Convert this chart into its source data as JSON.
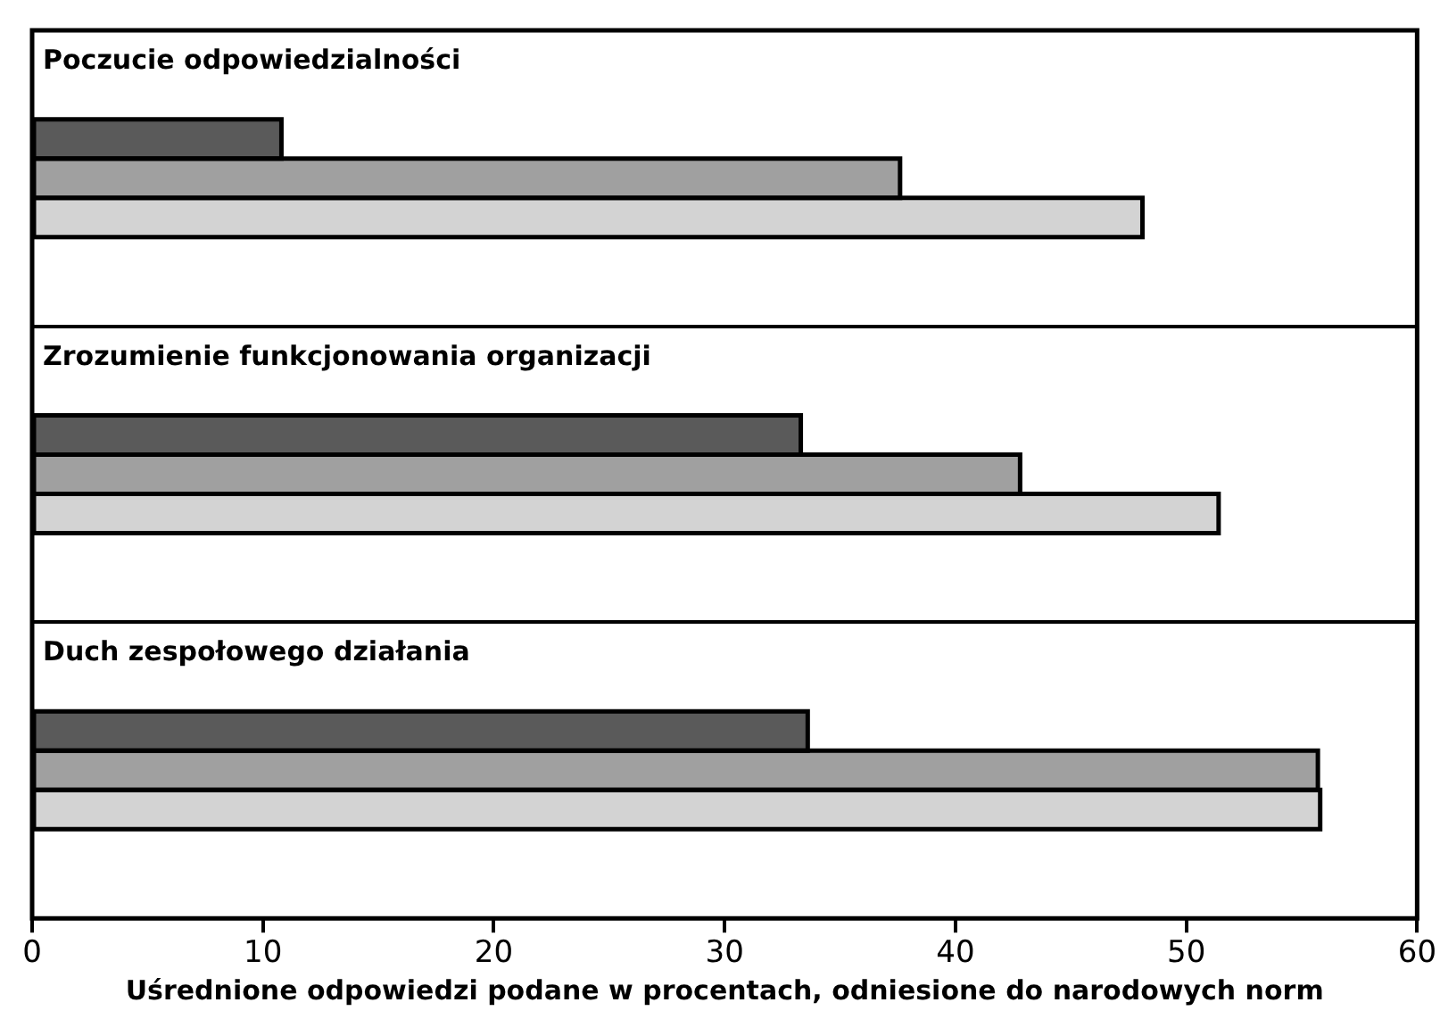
{
  "chart_data": {
    "type": "bar",
    "orientation": "horizontal",
    "xlabel": "Uśrednione odpowiedzi podane w procentach, odniesione do narodowych norm",
    "categories": [
      "Poczucie odpowiedzialności",
      "Zrozumienie funkcjonowania organizacji",
      "Duch zespołowego działania"
    ],
    "series": [
      {
        "color": "#5a5a5a",
        "values": [
          10.8,
          33.3,
          33.6
        ]
      },
      {
        "color": "#a0a0a0",
        "values": [
          37.6,
          42.8,
          55.7
        ]
      },
      {
        "color": "#d3d3d3",
        "values": [
          48.1,
          51.4,
          55.8
        ]
      }
    ],
    "xlim": [
      0,
      60
    ],
    "xticks": [
      0,
      10,
      20,
      30,
      40,
      50,
      60
    ],
    "grid": "y",
    "legend": false
  }
}
